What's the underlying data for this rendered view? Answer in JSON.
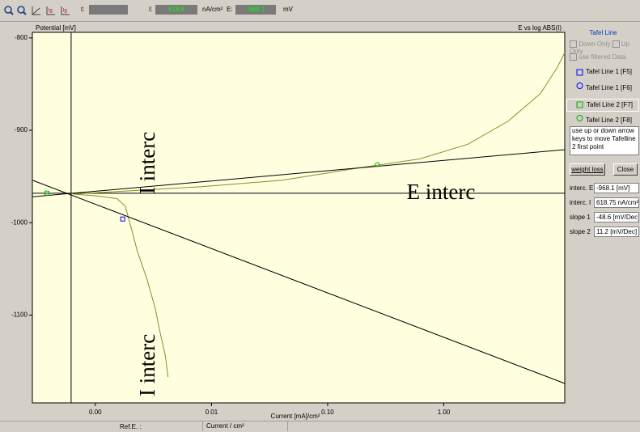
{
  "toolbar": {
    "t_label": "t:",
    "i_label": "I:",
    "i_value": "618.8",
    "i_unit": "nA/cm²",
    "e_label": "E:",
    "e_value": "-968.1",
    "e_unit": "mV"
  },
  "chart_data": {
    "type": "line",
    "title": "E vs log ABS(I)",
    "y_label": "Potential [mV]",
    "x_label": "Current [mA]/cm²",
    "x_log": true,
    "xlim": [
      0.000287,
      11
    ],
    "ylim": [
      -1195,
      -794
    ],
    "xticks": [
      {
        "value": 0.001,
        "label": "0.00"
      },
      {
        "value": 0.01,
        "label": "0.01"
      },
      {
        "value": 0.1,
        "label": "0.10"
      },
      {
        "value": 1,
        "label": "1.00"
      }
    ],
    "yticks": [
      -800,
      -900,
      -1000,
      -1100
    ],
    "background": "#ffffe0",
    "series": [
      {
        "color": "#8b8b2a",
        "x": [
          0.00422,
          0.00402,
          0.0036,
          0.00327,
          0.00278,
          0.0023,
          0.00202,
          0.00181,
          0.00154,
          0.00103,
          0.00064,
          0.00167,
          0.00826,
          0.0408,
          0.202,
          0.619,
          1.62,
          3.59,
          6.81,
          9.38,
          11
        ],
        "values": [
          -1167,
          -1145,
          -1118,
          -1092,
          -1061,
          -1031,
          -1004,
          -982,
          -974,
          -971,
          -969,
          -966,
          -961,
          -954,
          -940,
          -931,
          -915,
          -890,
          -860,
          -833,
          -816
        ]
      },
      {
        "color": "#000000",
        "x": [
          0.000287,
          11
        ],
        "values": [
          -954,
          -1174
        ]
      },
      {
        "color": "#000000",
        "x": [
          0.000287,
          11
        ],
        "values": [
          -972,
          -921
        ]
      }
    ],
    "markers": [
      {
        "shape": "square",
        "color": "#0000ff",
        "x": 0.00172,
        "y": -996
      },
      {
        "shape": "square",
        "color": "#00b000",
        "x": 0.000383,
        "y": -968
      },
      {
        "shape": "circle",
        "color": "#00b000",
        "x": 0.268,
        "y": -937
      }
    ],
    "crosshair": {
      "x": 0.000619,
      "y": -968.1,
      "color": "#000000"
    },
    "annotations": [
      "I interc",
      "E interc",
      "I interc"
    ]
  },
  "side_panel": {
    "title": "Tafel Line",
    "down_only": "Down Only",
    "up_only": "Up Only",
    "filtered": "use filtered Data",
    "items": [
      "Tafel Line 1 [F5]",
      "Tafel Line 1 [F6]",
      "Tafel Line 2 [F7]",
      "Tafel Line 2 [F8]"
    ],
    "hint": "use up or down arrow keys to move Tafelline 2 first point",
    "buttons": [
      "weight loss",
      "Close"
    ],
    "fields": [
      [
        "interc. E",
        "-968.1 [mV]"
      ],
      [
        "interc. I",
        "618.75 nA/cm²"
      ],
      [
        "slope 1",
        "-48.6 [mV/Dec]"
      ],
      [
        "slope 2",
        "11.2 [mV/Dec]"
      ]
    ]
  },
  "status_bar": {
    "ref": "Ref.E. :",
    "current": "Current / cm²"
  }
}
